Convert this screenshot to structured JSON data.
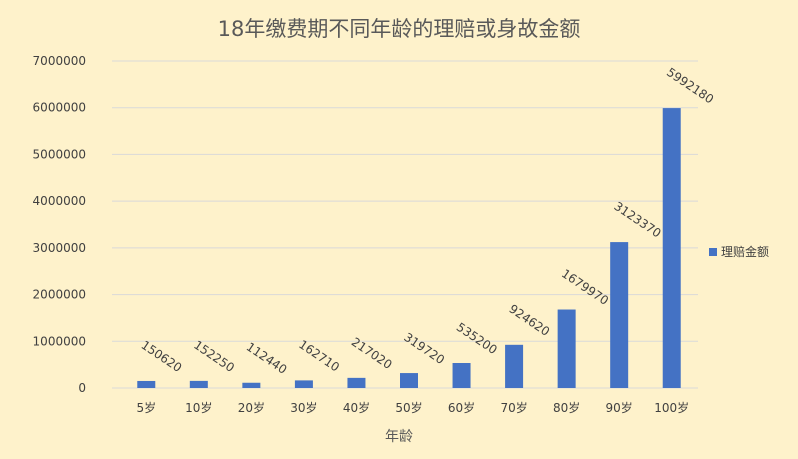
{
  "chart_data": {
    "type": "bar",
    "title": "18年缴费期不同年龄的理赔或身故金额",
    "xlabel": "年龄",
    "ylabel": "",
    "categories": [
      "5岁",
      "10岁",
      "20岁",
      "30岁",
      "40岁",
      "50岁",
      "60岁",
      "70岁",
      "80岁",
      "90岁",
      "100岁"
    ],
    "series": [
      {
        "name": "理赔金额",
        "values": [
          150620,
          152250,
          112440,
          162710,
          217020,
          319720,
          535200,
          924620,
          1679970,
          3123370,
          5992180
        ],
        "color": "#4472c4"
      }
    ],
    "ylim": [
      0,
      7000000
    ],
    "yticks": [
      "0",
      "1000000",
      "2000000",
      "3000000",
      "4000000",
      "5000000",
      "6000000",
      "7000000"
    ],
    "grid": true,
    "legend_position": "right",
    "background": "#fef2cb"
  }
}
